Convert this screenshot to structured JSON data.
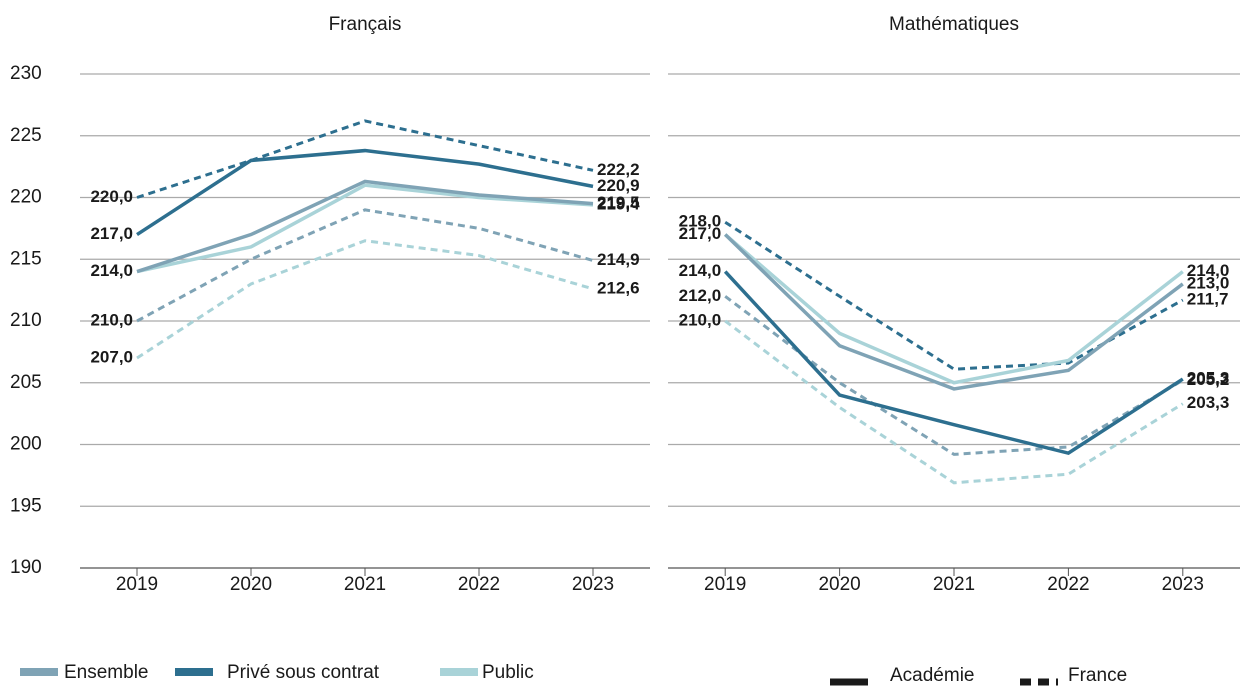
{
  "chart_data": [
    {
      "type": "line",
      "title": "Français",
      "categories": [
        "2019",
        "2020",
        "2021",
        "2022",
        "2023"
      ],
      "ylim": [
        190,
        230
      ],
      "yticks": [
        190,
        195,
        200,
        205,
        210,
        215,
        220,
        225,
        230
      ],
      "grid": true,
      "series": [
        {
          "group": 2,
          "style": 1,
          "values": [
            207.0,
            213.0,
            216.5,
            215.3,
            212.6
          ],
          "value_labels": [
            "207,0",
            null,
            null,
            null,
            "212,6"
          ]
        },
        {
          "group": 0,
          "style": 1,
          "values": [
            210.0,
            215.0,
            219.0,
            217.5,
            214.9
          ],
          "value_labels": [
            "210,0",
            null,
            null,
            null,
            "214,9"
          ]
        },
        {
          "group": 1,
          "style": 1,
          "values": [
            220.0,
            223.0,
            226.2,
            224.2,
            222.2
          ],
          "value_labels": [
            "220,0",
            null,
            null,
            null,
            "222,2"
          ]
        },
        {
          "group": 2,
          "style": 0,
          "values": [
            214.0,
            216.0,
            221.0,
            220.0,
            219.4
          ],
          "value_labels": [
            null,
            null,
            null,
            null,
            "219,4"
          ]
        },
        {
          "group": 0,
          "style": 0,
          "values": [
            214.0,
            217.0,
            221.3,
            220.2,
            219.5
          ],
          "value_labels": [
            "214,0",
            null,
            null,
            null,
            "219,5"
          ]
        },
        {
          "group": 1,
          "style": 0,
          "values": [
            217.0,
            223.0,
            223.8,
            222.7,
            220.9
          ],
          "value_labels": [
            "217,0",
            null,
            null,
            null,
            "220,9"
          ]
        }
      ]
    },
    {
      "type": "line",
      "title": "Mathématiques",
      "categories": [
        "2019",
        "2020",
        "2021",
        "2022",
        "2023"
      ],
      "ylim": [
        190,
        230
      ],
      "yticks": [
        190,
        195,
        200,
        205,
        210,
        215,
        220,
        225,
        230
      ],
      "grid": true,
      "series": [
        {
          "group": 2,
          "style": 1,
          "values": [
            210.0,
            203.0,
            196.9,
            197.6,
            203.3
          ],
          "value_labels": [
            "210,0",
            null,
            null,
            null,
            "203,3"
          ]
        },
        {
          "group": 0,
          "style": 1,
          "values": [
            212.0,
            205.0,
            199.2,
            199.8,
            205.2
          ],
          "value_labels": [
            "212,0",
            null,
            null,
            null,
            "205,2"
          ]
        },
        {
          "group": 1,
          "style": 1,
          "values": [
            218.0,
            212.0,
            206.1,
            206.6,
            211.7
          ],
          "value_labels": [
            "218,0",
            null,
            null,
            null,
            "211,7"
          ]
        },
        {
          "group": 2,
          "style": 0,
          "values": [
            217.0,
            209.0,
            205.0,
            206.8,
            214.0
          ],
          "value_labels": [
            null,
            null,
            null,
            null,
            "214,0"
          ]
        },
        {
          "group": 0,
          "style": 0,
          "values": [
            217.0,
            208.0,
            204.5,
            206.0,
            213.0
          ],
          "value_labels": [
            "217,0",
            null,
            null,
            null,
            "213,0"
          ]
        },
        {
          "group": 1,
          "style": 0,
          "values": [
            214.0,
            204.0,
            201.6,
            199.3,
            205.3
          ],
          "value_labels": [
            "214,0",
            null,
            null,
            null,
            "205,3"
          ]
        }
      ]
    }
  ],
  "legend": {
    "groups": [
      {
        "name": "Ensemble",
        "color": "#7fa3b5"
      },
      {
        "name": "Privé sous contrat",
        "color": "#2d6f8f"
      },
      {
        "name": "Public",
        "color": "#a9d3d8"
      }
    ],
    "styles": [
      {
        "name": "Académie",
        "dash": false
      },
      {
        "name": "France",
        "dash": true
      }
    ]
  }
}
